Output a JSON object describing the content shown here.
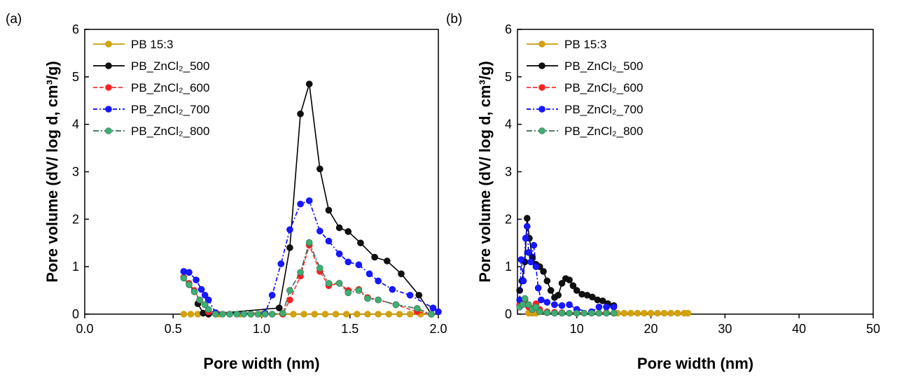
{
  "chart_data": [
    {
      "type": "line",
      "panel_label": "(a)",
      "xlabel": "Pore width (nm)",
      "ylabel": "Pore volume (dV/ log d, cm³/g)",
      "xlim": [
        0,
        2
      ],
      "ylim": [
        0,
        6
      ],
      "xticks": [
        0.0,
        0.5,
        1.0,
        1.5,
        2.0
      ],
      "xtick_labels": [
        "0.0",
        "0.5",
        "1.0",
        "1.5",
        "2.0"
      ],
      "yticks": [
        0,
        1,
        2,
        3,
        4,
        5,
        6
      ],
      "ytick_labels": [
        "0",
        "1",
        "2",
        "3",
        "4",
        "5",
        "6"
      ],
      "legend": "top-left",
      "grid": false,
      "series": [
        {
          "name": "PB 15:3",
          "color": "#d4a20c",
          "line": "#c89a10",
          "x": [
            0.56,
            0.6,
            0.64,
            0.7,
            0.76,
            0.82,
            0.88,
            0.94,
            1.0,
            1.06,
            1.12,
            1.18,
            1.24,
            1.3,
            1.36,
            1.42,
            1.48,
            1.54,
            1.6,
            1.66,
            1.72,
            1.78,
            1.84,
            1.9,
            1.96
          ],
          "y": [
            0,
            0,
            0,
            0,
            0,
            0,
            0,
            0,
            0,
            0,
            0,
            0,
            0,
            0,
            0,
            0,
            0,
            0,
            0,
            0,
            0,
            0,
            0,
            0,
            0
          ]
        },
        {
          "name": "PB_ZnCl₂_500",
          "color": "#111111",
          "line": "#000000",
          "x": [
            0.64,
            0.67,
            0.7,
            1.1,
            1.16,
            1.22,
            1.27,
            1.33,
            1.38,
            1.44,
            1.49,
            1.56,
            1.64,
            1.71,
            1.79,
            1.89,
            1.96
          ],
          "y": [
            0.22,
            0.02,
            0,
            0.13,
            1.4,
            4.22,
            4.85,
            3.06,
            2.19,
            1.82,
            1.74,
            1.5,
            1.2,
            1.12,
            0.85,
            0.4,
            0
          ]
        },
        {
          "name": "PB_ZnCl₂_600",
          "color": "#ff2020",
          "line": "#ff3030",
          "x": [
            0.56,
            0.59,
            0.62,
            0.65,
            0.68,
            0.7,
            1.12,
            1.16,
            1.22,
            1.27,
            1.33,
            1.38,
            1.44,
            1.49,
            1.55,
            1.6,
            1.66,
            1.76,
            1.88,
            1.96
          ],
          "y": [
            0.78,
            0.65,
            0.5,
            0.3,
            0.2,
            0.05,
            0,
            0.3,
            0.8,
            1.45,
            0.9,
            0.6,
            0.65,
            0.5,
            0.52,
            0.35,
            0.3,
            0.2,
            0.05,
            0
          ]
        },
        {
          "name": "PB_ZnCl₂_700",
          "color": "#1818ff",
          "line": "#0000ff",
          "x": [
            0.56,
            0.59,
            0.63,
            0.66,
            0.68,
            0.7,
            0.74,
            1.02,
            1.06,
            1.11,
            1.16,
            1.22,
            1.27,
            1.33,
            1.38,
            1.44,
            1.49,
            1.55,
            1.61,
            1.66,
            1.74,
            1.84,
            1.97,
            2.0
          ],
          "y": [
            0.9,
            0.88,
            0.72,
            0.52,
            0.4,
            0.3,
            0.03,
            0.02,
            0.4,
            1.06,
            1.78,
            2.32,
            2.39,
            1.75,
            1.54,
            1.27,
            1.1,
            1.04,
            0.85,
            0.7,
            0.52,
            0.4,
            0.13,
            0.05
          ]
        },
        {
          "name": "PB_ZnCl₂_800",
          "color": "#3fae72",
          "line": "#2f6b50",
          "x": [
            0.56,
            0.59,
            0.62,
            0.65,
            0.68,
            0.7,
            0.74,
            0.78,
            0.82,
            0.86,
            0.9,
            0.94,
            0.98,
            1.02,
            1.06,
            1.12,
            1.16,
            1.22,
            1.27,
            1.33,
            1.38,
            1.44,
            1.49,
            1.55,
            1.6,
            1.66,
            1.76,
            1.88,
            1.96
          ],
          "y": [
            0.76,
            0.62,
            0.47,
            0.3,
            0.2,
            0.1,
            0,
            0,
            0,
            0,
            0,
            0,
            0,
            0,
            0,
            0.02,
            0.5,
            0.88,
            1.51,
            0.97,
            0.65,
            0.65,
            0.45,
            0.5,
            0.33,
            0.3,
            0.2,
            0.12,
            0
          ]
        }
      ]
    },
    {
      "type": "line",
      "panel_label": "(b)",
      "xlabel": "Pore width (nm)",
      "ylabel": "Pore volume (dV/ log d, cm³/g)",
      "xlim": [
        2,
        50
      ],
      "ylim": [
        0,
        6
      ],
      "xticks": [
        10,
        20,
        30,
        40,
        50
      ],
      "xtick_labels": [
        "10",
        "20",
        "30",
        "40",
        "50"
      ],
      "yticks": [
        0,
        1,
        2,
        3,
        4,
        5,
        6
      ],
      "ytick_labels": [
        "0",
        "1",
        "2",
        "3",
        "4",
        "5",
        "6"
      ],
      "legend": "top-left",
      "grid": false,
      "series": [
        {
          "name": "PB 15:3",
          "color": "#d4a20c",
          "line": "#c89a10",
          "x": [
            3.5,
            4,
            4.5,
            15.5,
            16.4,
            17.3,
            18.2,
            19.1,
            20,
            20.9,
            21.8,
            22.7,
            23.6,
            24.5,
            25
          ],
          "y": [
            0.02,
            0.02,
            0.02,
            0.02,
            0.02,
            0.02,
            0.02,
            0.02,
            0.02,
            0.02,
            0.02,
            0.02,
            0.02,
            0.02,
            0.02
          ]
        },
        {
          "name": "PB_ZnCl₂_500",
          "color": "#111111",
          "line": "#000000",
          "x": [
            2.3,
            2.6,
            3.0,
            3.3,
            3.6,
            4.0,
            4.5,
            5.0,
            5.5,
            6.0,
            6.5,
            7.0,
            7.5,
            8.0,
            8.5,
            9.0,
            9.5,
            10,
            10.7,
            11.4,
            12.1,
            12.8,
            13.5,
            14.2,
            15
          ],
          "y": [
            0.5,
            0.7,
            1.1,
            2.02,
            1.6,
            1.2,
            1.05,
            1.0,
            0.9,
            0.7,
            0.5,
            0.35,
            0.4,
            0.65,
            0.75,
            0.72,
            0.6,
            0.5,
            0.42,
            0.4,
            0.36,
            0.3,
            0.28,
            0.22,
            0.18
          ]
        },
        {
          "name": "PB_ZnCl₂_600",
          "color": "#ff2020",
          "line": "#ff3030",
          "x": [
            2.3,
            2.7,
            3.0,
            3.5,
            4.0,
            4.5,
            5.0,
            6.0,
            7.0,
            8.0,
            10,
            12,
            14,
            15
          ],
          "y": [
            0.2,
            0.25,
            0.3,
            0.15,
            0.12,
            0.22,
            0.1,
            0.05,
            0.04,
            0.03,
            0.03,
            0.04,
            0.03,
            0.02
          ]
        },
        {
          "name": "PB_ZnCl₂_700",
          "color": "#1818ff",
          "line": "#0000ff",
          "x": [
            2.3,
            2.5,
            2.8,
            3.1,
            3.3,
            3.5,
            3.8,
            4.2,
            4.5,
            4.8,
            5.2,
            6.0,
            7.0,
            8.0,
            9.0,
            10,
            12,
            13,
            14,
            15
          ],
          "y": [
            0.3,
            1.15,
            0.7,
            1.6,
            1.85,
            1.3,
            1.1,
            1.45,
            1.0,
            0.55,
            0.3,
            0.25,
            0.2,
            0.18,
            0.2,
            0.1,
            0.05,
            0.15,
            0.15,
            0.15
          ]
        },
        {
          "name": "PB_ZnCl₂_800",
          "color": "#3fae72",
          "line": "#2f6b50",
          "x": [
            2.3,
            2.7,
            3.0,
            3.5,
            4.0,
            4.5,
            5.0,
            6.0,
            7.0,
            8.0,
            9.0,
            10,
            11,
            12,
            13,
            14,
            15
          ],
          "y": [
            0.15,
            0.2,
            0.33,
            0.2,
            0.1,
            0.15,
            0.05,
            0.03,
            0.02,
            0.02,
            0.02,
            0.02,
            0.02,
            0.02,
            0.02,
            0.02,
            0.02
          ]
        }
      ]
    }
  ]
}
